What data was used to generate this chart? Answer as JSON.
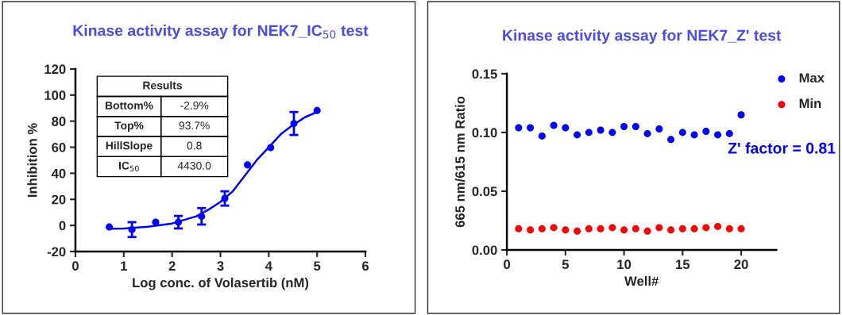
{
  "chart_data": [
    {
      "type": "scatter",
      "title": "Kinase activity assay for NEK7_IC$_{50}$ test",
      "xlabel": "Log conc. of Volasertib (nM)",
      "ylabel": "Inhibition %",
      "xlim": [
        0,
        6
      ],
      "xticks": [
        0,
        1,
        2,
        3,
        4,
        5,
        6
      ],
      "ylim": [
        -20,
        120
      ],
      "yticks": [
        -20,
        0,
        20,
        40,
        60,
        80,
        100,
        120
      ],
      "grid": false,
      "legend": false,
      "marker": "circle",
      "annotations": [
        "Results",
        "Bottom%",
        "-2.9%",
        "Top%",
        "93.7%",
        "HillSlope",
        "0.8",
        "IC$_{50}$",
        "4430.0"
      ],
      "series": [
        {
          "type": "scatter",
          "color": "#0000ff",
          "x": [
            0.7,
            1.17,
            1.66,
            2.13,
            2.61,
            3.09,
            3.56,
            4.04,
            4.52,
            5.0
          ],
          "values": [
            -1.2,
            -3.2,
            2.5,
            2.5,
            7,
            20.7,
            46.5,
            59.7,
            78.2,
            88.1
          ],
          "errors": [
            null,
            5.7,
            null,
            4.8,
            6.3,
            5.5,
            null,
            null,
            8.8,
            null
          ]
        },
        {
          "type": "line",
          "color": "#0000ff",
          "line_style": "solid",
          "marker": "none",
          "x": [
            0.7,
            1.0,
            1.5,
            2.0,
            2.5,
            2.75,
            3.0,
            3.25,
            3.5,
            3.75,
            4.0,
            4.25,
            4.5,
            4.75,
            5.0
          ],
          "values": [
            -2.5,
            -2.3,
            -1,
            1.5,
            7,
            12,
            18,
            26,
            38,
            50,
            60,
            70,
            77,
            83,
            87
          ]
        }
      ]
    },
    {
      "type": "scatter",
      "title": "Kinase activity assay for NEK7_Z' test",
      "xlabel": "Well#",
      "ylabel": "665 nm/615 nm Ratio",
      "xlim": [
        0,
        23
      ],
      "xticks": [
        0,
        5,
        10,
        15,
        20
      ],
      "ylim": [
        0,
        0.15
      ],
      "yticks": [
        {
          "value": 0,
          "label": "0.00"
        },
        0.05,
        {
          "value": 0.1,
          "label": "0.10"
        },
        0.15
      ],
      "grid": false,
      "legend": "top right",
      "marker": "circle",
      "annotations": [
        "Z' factor = 0.81"
      ],
      "x": [
        1,
        2,
        3,
        4,
        5,
        6,
        7,
        8,
        9,
        10,
        11,
        12,
        13,
        14,
        15,
        16,
        17,
        18,
        19,
        20
      ],
      "series": [
        {
          "name": "Max",
          "color": "#0000ff",
          "values": [
            0.104,
            0.104,
            0.097,
            0.106,
            0.104,
            0.098,
            0.1,
            0.102,
            0.1,
            0.105,
            0.105,
            0.099,
            0.103,
            0.094,
            0.1,
            0.098,
            0.101,
            0.098,
            0.099,
            0.115
          ]
        },
        {
          "name": "Min",
          "color": "#ff0000",
          "values": [
            0.018,
            0.017,
            0.018,
            0.019,
            0.017,
            0.016,
            0.018,
            0.018,
            0.019,
            0.017,
            0.018,
            0.016,
            0.019,
            0.017,
            0.018,
            0.018,
            0.019,
            0.02,
            0.018,
            0.018
          ]
        }
      ]
    }
  ]
}
